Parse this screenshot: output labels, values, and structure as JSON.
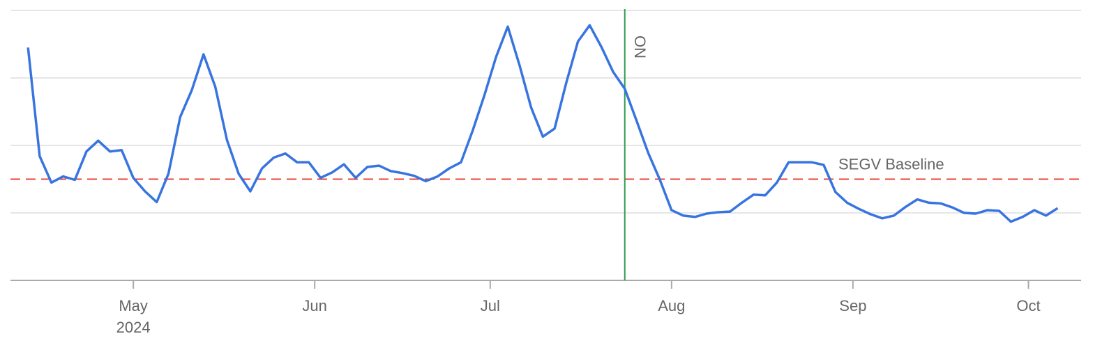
{
  "chart_data": {
    "type": "line",
    "x": [
      104,
      106,
      108,
      110,
      112,
      114,
      116,
      118,
      120,
      122,
      124,
      126,
      128,
      130,
      132,
      134,
      136,
      138,
      140,
      142,
      144,
      146,
      148,
      150,
      152,
      154,
      156,
      158,
      160,
      162,
      164,
      166,
      168,
      170,
      172,
      174,
      176,
      178,
      180,
      182,
      184,
      186,
      188,
      190,
      192,
      194,
      196,
      198,
      200,
      202,
      204,
      206,
      208,
      210,
      212,
      214,
      216,
      218,
      220,
      222,
      224,
      226,
      228,
      230,
      232,
      234,
      236,
      238,
      240,
      242,
      244,
      246,
      248,
      250,
      252,
      254,
      256,
      258,
      260,
      262,
      264,
      266,
      268,
      270,
      272,
      274,
      276,
      278,
      280
    ],
    "values": [
      3.45,
      1.84,
      1.45,
      1.54,
      1.49,
      1.91,
      2.07,
      1.91,
      1.93,
      1.52,
      1.32,
      1.16,
      1.58,
      2.42,
      2.82,
      3.35,
      2.87,
      2.08,
      1.58,
      1.32,
      1.66,
      1.82,
      1.88,
      1.75,
      1.75,
      1.52,
      1.6,
      1.72,
      1.52,
      1.68,
      1.7,
      1.62,
      1.59,
      1.55,
      1.47,
      1.54,
      1.66,
      1.75,
      2.22,
      2.74,
      3.31,
      3.76,
      3.19,
      2.56,
      2.13,
      2.25,
      2.93,
      3.54,
      3.78,
      3.46,
      3.09,
      2.84,
      2.37,
      1.89,
      1.49,
      1.04,
      0.96,
      0.94,
      0.99,
      1.01,
      1.02,
      1.15,
      1.27,
      1.26,
      1.45,
      1.75,
      1.75,
      1.75,
      1.71,
      1.31,
      1.15,
      1.06,
      0.98,
      0.92,
      0.96,
      1.09,
      1.2,
      1.15,
      1.14,
      1.08,
      1.0,
      0.99,
      1.04,
      1.03,
      0.87,
      0.94,
      1.04,
      0.96,
      1.07
    ],
    "color": "#3874e0",
    "xlim": [
      101,
      284
    ],
    "xticks": [
      {
        "value": 122,
        "label": "May"
      },
      {
        "value": 153,
        "label": "Jun"
      },
      {
        "value": 183,
        "label": "Jul"
      },
      {
        "value": 214,
        "label": "Aug"
      },
      {
        "value": 245,
        "label": "Sep"
      },
      {
        "value": 275,
        "label": "Oct"
      }
    ],
    "x_year_label": "2024",
    "ylim": [
      0,
      4
    ],
    "yticks": [
      0,
      1,
      2,
      3,
      4
    ],
    "grid": true,
    "reference_lines": [
      {
        "value": 1.5,
        "label": "SEGV Baseline",
        "color": "#e8463a"
      }
    ],
    "markers": [
      {
        "x": 206,
        "label": "ON",
        "color": "#2e9e4f"
      }
    ]
  }
}
